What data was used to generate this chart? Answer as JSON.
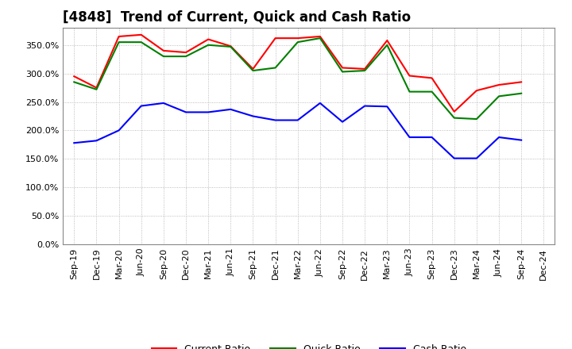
{
  "title": "[4848]  Trend of Current, Quick and Cash Ratio",
  "labels": [
    "Sep-19",
    "Dec-19",
    "Mar-20",
    "Jun-20",
    "Sep-20",
    "Dec-20",
    "Mar-21",
    "Jun-21",
    "Sep-21",
    "Dec-21",
    "Mar-22",
    "Jun-22",
    "Sep-22",
    "Dec-22",
    "Mar-23",
    "Jun-23",
    "Sep-23",
    "Dec-23",
    "Mar-24",
    "Jun-24",
    "Sep-24",
    "Dec-24"
  ],
  "current_ratio": [
    295,
    275,
    365,
    368,
    340,
    337,
    360,
    348,
    308,
    362,
    362,
    365,
    310,
    308,
    358,
    296,
    292,
    233,
    270,
    280,
    285,
    null
  ],
  "quick_ratio": [
    285,
    272,
    355,
    355,
    330,
    330,
    350,
    347,
    305,
    310,
    355,
    362,
    303,
    305,
    350,
    268,
    268,
    222,
    220,
    260,
    265,
    null
  ],
  "cash_ratio": [
    178,
    182,
    200,
    243,
    248,
    232,
    232,
    237,
    225,
    218,
    218,
    248,
    215,
    243,
    242,
    188,
    188,
    151,
    151,
    188,
    183,
    null
  ],
  "current_color": "#ff0000",
  "quick_color": "#008000",
  "cash_color": "#0000ff",
  "background_color": "#ffffff",
  "grid_color": "#aaaaaa",
  "ylim": [
    0,
    380
  ],
  "yticks": [
    0,
    50,
    100,
    150,
    200,
    250,
    300,
    350
  ],
  "figsize": [
    7.2,
    4.4
  ],
  "dpi": 100,
  "title_fontsize": 12,
  "legend_fontsize": 9,
  "tick_fontsize": 8
}
